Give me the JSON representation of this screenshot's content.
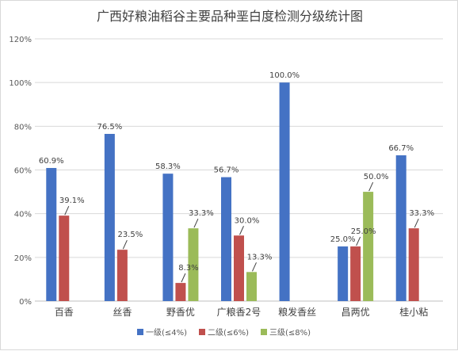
{
  "chart_data": {
    "type": "bar",
    "title": "广西好粮油稻谷主要品种垩白度检测分级统计图",
    "xlabel": "",
    "ylabel": "",
    "categories": [
      "百香",
      "丝香",
      "野香优",
      "广粮香2号",
      "粮发香丝",
      "昌两优",
      "桂小粘"
    ],
    "ylim": [
      0,
      120
    ],
    "yticks": [
      0,
      20,
      40,
      60,
      80,
      100,
      120
    ],
    "ytick_labels": [
      "0%",
      "20%",
      "40%",
      "60%",
      "80%",
      "100%",
      "120%"
    ],
    "grid": true,
    "legend_position": "bottom",
    "series": [
      {
        "name": "一级(≤4%)",
        "color": "#4472c4",
        "values": [
          60.9,
          76.5,
          58.3,
          56.7,
          100.0,
          25.0,
          66.7
        ],
        "labels": [
          "60.9%",
          "76.5%",
          "58.3%",
          "56.7%",
          "100.0%",
          "25.0%",
          "66.7%"
        ]
      },
      {
        "name": "二级(≤6%)",
        "color": "#c0504d",
        "values": [
          39.1,
          23.5,
          8.3,
          30.0,
          null,
          25.0,
          33.3
        ],
        "labels": [
          "39.1%",
          "23.5%",
          "8.3%",
          "30.0%",
          null,
          "25.0%",
          "33.3%"
        ]
      },
      {
        "name": "三级(≤8%)",
        "color": "#9bbb59",
        "values": [
          null,
          null,
          33.3,
          13.3,
          null,
          50.0,
          null
        ],
        "labels": [
          null,
          null,
          "33.3%",
          "13.3%",
          null,
          "50.0%",
          null
        ]
      }
    ]
  }
}
